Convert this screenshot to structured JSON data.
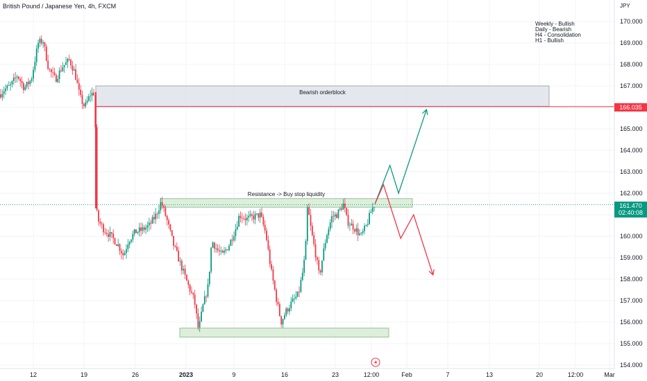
{
  "header": {
    "title": "British Pound / Japanese Yen, 4h, FXCM",
    "currency": "JPY"
  },
  "notes": [
    "Weekly - Bullish",
    "Daily - Bearish",
    "H4 - Consolidation",
    "H1 - Bullish"
  ],
  "price_tags": {
    "level": "166.035",
    "current_price": "161.470",
    "countdown": "02:40:08"
  },
  "colors": {
    "up": "#089981",
    "down": "#f23645",
    "zone_gray": "#e0e3eb",
    "zone_green": "#d7ecd6"
  },
  "chart_data": {
    "type": "candlestick",
    "ylim": [
      154.0,
      170.35
    ],
    "yticks": [
      "170.000",
      "169.000",
      "168.000",
      "167.000",
      "166.000",
      "165.000",
      "164.000",
      "163.000",
      "162.000",
      "161.000",
      "160.000",
      "159.000",
      "158.000",
      "157.000",
      "156.000",
      "155.000",
      "154.000"
    ],
    "xticks": [
      "12",
      "19",
      "26",
      "2023",
      "9",
      "16",
      "23",
      "12:00",
      "Feb",
      "7",
      "13",
      "20",
      "12:00",
      "Mar"
    ],
    "series_shape": [
      [
        0,
        166.6
      ],
      [
        5,
        166.8
      ],
      [
        15,
        167.0
      ],
      [
        25,
        167.5
      ],
      [
        35,
        166.9
      ],
      [
        45,
        167.3
      ],
      [
        55,
        169.0
      ],
      [
        62,
        169.1
      ],
      [
        70,
        167.8
      ],
      [
        80,
        167.3
      ],
      [
        90,
        167.9
      ],
      [
        100,
        168.2
      ],
      [
        108,
        167.6
      ],
      [
        115,
        166.5
      ],
      [
        122,
        166.0
      ],
      [
        130,
        166.6
      ],
      [
        137,
        166.7
      ],
      [
        138,
        161.3
      ],
      [
        142,
        160.7
      ],
      [
        150,
        160.3
      ],
      [
        160,
        160.0
      ],
      [
        170,
        159.6
      ],
      [
        178,
        159.1
      ],
      [
        185,
        159.8
      ],
      [
        195,
        160.2
      ],
      [
        205,
        160.3
      ],
      [
        215,
        160.5
      ],
      [
        225,
        161.0
      ],
      [
        232,
        161.6
      ],
      [
        240,
        160.8
      ],
      [
        250,
        159.6
      ],
      [
        260,
        158.7
      ],
      [
        270,
        157.8
      ],
      [
        280,
        157.0
      ],
      [
        286,
        155.6
      ],
      [
        292,
        156.7
      ],
      [
        300,
        157.7
      ],
      [
        305,
        159.8
      ],
      [
        312,
        159.4
      ],
      [
        320,
        159.1
      ],
      [
        330,
        159.6
      ],
      [
        340,
        160.4
      ],
      [
        345,
        161.0
      ],
      [
        355,
        160.8
      ],
      [
        365,
        160.9
      ],
      [
        375,
        161.0
      ],
      [
        383,
        160.1
      ],
      [
        390,
        158.5
      ],
      [
        398,
        157.1
      ],
      [
        405,
        156.0
      ],
      [
        412,
        156.5
      ],
      [
        420,
        156.9
      ],
      [
        430,
        157.3
      ],
      [
        437,
        158.5
      ],
      [
        440,
        159.3
      ],
      [
        443,
        161.4
      ],
      [
        448,
        160.3
      ],
      [
        455,
        159.1
      ],
      [
        460,
        158.1
      ],
      [
        465,
        159.1
      ],
      [
        470,
        160.0
      ],
      [
        478,
        160.9
      ],
      [
        485,
        161.0
      ],
      [
        495,
        161.5
      ],
      [
        500,
        160.7
      ],
      [
        510,
        160.4
      ],
      [
        520,
        160.0
      ],
      [
        528,
        160.5
      ],
      [
        535,
        161.2
      ],
      [
        540,
        161.5
      ]
    ],
    "projections": [
      {
        "name": "bullish-path",
        "color": "#089981",
        "points": [
          [
            161.5,
            0
          ],
          [
            163.3,
            7
          ],
          [
            162.0,
            11
          ],
          [
            165.9,
            24
          ]
        ]
      },
      {
        "name": "bearish-path",
        "color": "#f23645",
        "points": [
          [
            161.5,
            0
          ],
          [
            162.4,
            4
          ],
          [
            159.9,
            12
          ],
          [
            161.0,
            18
          ],
          [
            158.2,
            27
          ]
        ]
      }
    ],
    "zones": [
      {
        "name": "bearish-orderblock",
        "label": "Bearish orderblock",
        "top": 167.0,
        "bottom": 166.05
      },
      {
        "name": "resistance-zone",
        "label": "Resistance -> Buy stop liquidity",
        "top": 161.75,
        "bottom": 161.35
      },
      {
        "name": "support-zone",
        "label": "",
        "top": 155.72,
        "bottom": 155.3
      }
    ],
    "levels": [
      {
        "name": "level-line",
        "value": 166.035,
        "color": "#f23645"
      },
      {
        "name": "current-price-line",
        "value": 161.47,
        "color": "#089981"
      }
    ]
  }
}
